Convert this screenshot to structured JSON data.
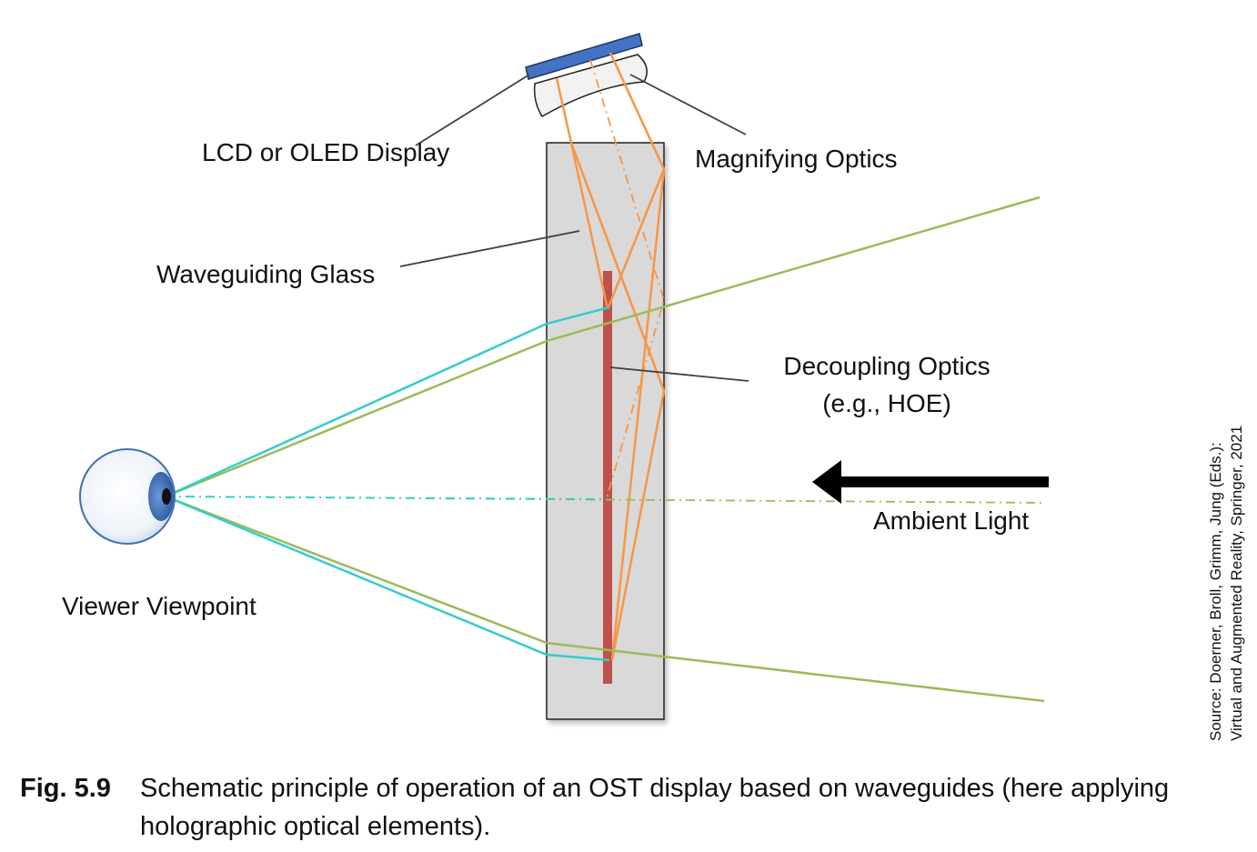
{
  "labels": {
    "display": "LCD or OLED Display",
    "optics": "Magnifying Optics",
    "glass": "Waveguiding Glass",
    "decoupling_line1": "Decoupling Optics",
    "decoupling_line2": "(e.g., HOE)",
    "ambient": "Ambient Light",
    "viewer": "Viewer Viewpoint"
  },
  "source": {
    "line1": "Source: Doerner, Broll, Grimm, Jung (Eds.):",
    "line2": "Virtual and Augmented Reality, Springer, 2021"
  },
  "caption": {
    "number": "Fig. 5.9",
    "text": "Schematic principle of operation of an OST display based on waveguides (here applying holographic optical elements)."
  },
  "colors": {
    "glass_fill": "#d9d9d9",
    "display_blue": "#4472c4",
    "hoe_red": "#c0504d",
    "ray_orange": "#f79646",
    "ray_cyan": "#33cccc",
    "ambient_green": "#9bbb59",
    "eye_blue": "#3f6fb5"
  }
}
